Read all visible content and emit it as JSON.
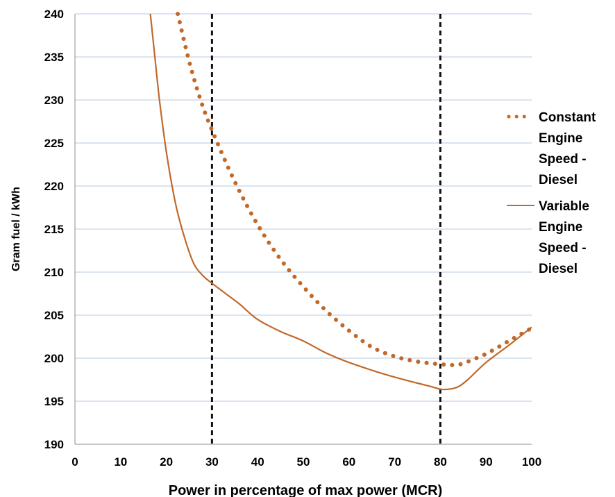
{
  "chart_data": {
    "type": "line",
    "title": "",
    "xlabel": "Power in percentage of max power (MCR)",
    "ylabel": "Gram fuel / kWh",
    "xlim": [
      0,
      100
    ],
    "ylim": [
      190,
      240
    ],
    "x_ticks": [
      "0",
      "10",
      "20",
      "30",
      "40",
      "50",
      "60",
      "70",
      "80",
      "90",
      "100"
    ],
    "y_ticks": [
      "190",
      "195",
      "200",
      "205",
      "210",
      "215",
      "220",
      "225",
      "230",
      "235",
      "240"
    ],
    "grid": "horizontal",
    "legend_position": "right",
    "reference_lines_x": [
      30,
      80
    ],
    "series": [
      {
        "name": "Constant Engine Speed - Diesel",
        "style": "dotted",
        "color": "#C0692A",
        "x": [
          22.5,
          25,
          27.5,
          30,
          35,
          40,
          45,
          50,
          55,
          60,
          65,
          70,
          75,
          80,
          83,
          85,
          90,
          95,
          100
        ],
        "y": [
          240,
          234.5,
          230,
          226.5,
          220.5,
          215.5,
          211.5,
          208.3,
          205.5,
          203.2,
          201.3,
          200.2,
          199.6,
          199.3,
          199.2,
          199.4,
          200.5,
          202,
          203.5
        ]
      },
      {
        "name": "Variable Engine Speed - Diesel",
        "style": "solid",
        "color": "#C0692A",
        "x": [
          16.5,
          17.5,
          18.5,
          20,
          22,
          24,
          26,
          28,
          30,
          33,
          36,
          40,
          45,
          50,
          55,
          60,
          65,
          70,
          75,
          78,
          80,
          82,
          84,
          86,
          90,
          95,
          100
        ],
        "y": [
          240,
          235,
          230,
          224,
          218,
          214,
          211,
          209.6,
          208.7,
          207.5,
          206.3,
          204.5,
          203.1,
          202,
          200.6,
          199.5,
          198.6,
          197.8,
          197.1,
          196.7,
          196.4,
          196.4,
          196.7,
          197.5,
          199.5,
          201.5,
          203.6
        ]
      }
    ]
  }
}
